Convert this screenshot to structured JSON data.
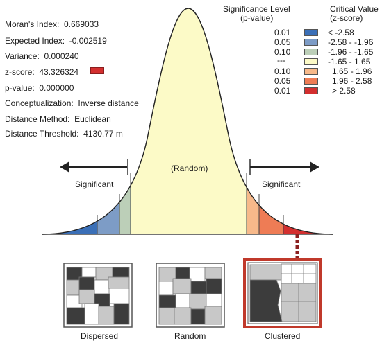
{
  "stats": [
    {
      "label": "Moran's Index:",
      "value": "0.669033"
    },
    {
      "label": "Expected Index:",
      "value": "-0.002519"
    },
    {
      "label": "Variance:",
      "value": "0.000240"
    },
    {
      "label": "z-score:",
      "value": "43.326324"
    },
    {
      "label": "p-value:",
      "value": "0.000000"
    },
    {
      "label": "Conceptualization:",
      "value": "Inverse distance"
    },
    {
      "label": "Distance Method:",
      "value": "Euclidean"
    },
    {
      "label": "Distance Threshold:",
      "value": "4130.77  m"
    }
  ],
  "zscore_marker_color": "#d32f2f",
  "legend": {
    "sig_header_1": "Significance Level",
    "sig_header_2": "(p-value)",
    "crit_header_1": "Critical Value",
    "crit_header_2": "(z-score)",
    "rows": [
      {
        "p": "0.01",
        "z": "< -2.58",
        "color": "#3a6fb7"
      },
      {
        "p": "0.05",
        "z": "-2.58 - -1.96",
        "color": "#7d9cc6"
      },
      {
        "p": "0.10",
        "z": "-1.96 - -1.65",
        "color": "#bccfb8"
      },
      {
        "p": "---",
        "z": "-1.65 - 1.65",
        "color": "#fcfac7"
      },
      {
        "p": "0.10",
        "z": "1.65 - 1.96",
        "color": "#f7b98a"
      },
      {
        "p": "0.05",
        "z": "1.96 - 2.58",
        "color": "#ee7c55"
      },
      {
        "p": "0.01",
        "z": "> 2.58",
        "color": "#d32f2f"
      }
    ]
  },
  "curve": {
    "center_label": "(Random)",
    "left_label": "Significant",
    "right_label": "Significant"
  },
  "maps": {
    "dispersed": "Dispersed",
    "random": "Random",
    "clustered": "Clustered"
  }
}
